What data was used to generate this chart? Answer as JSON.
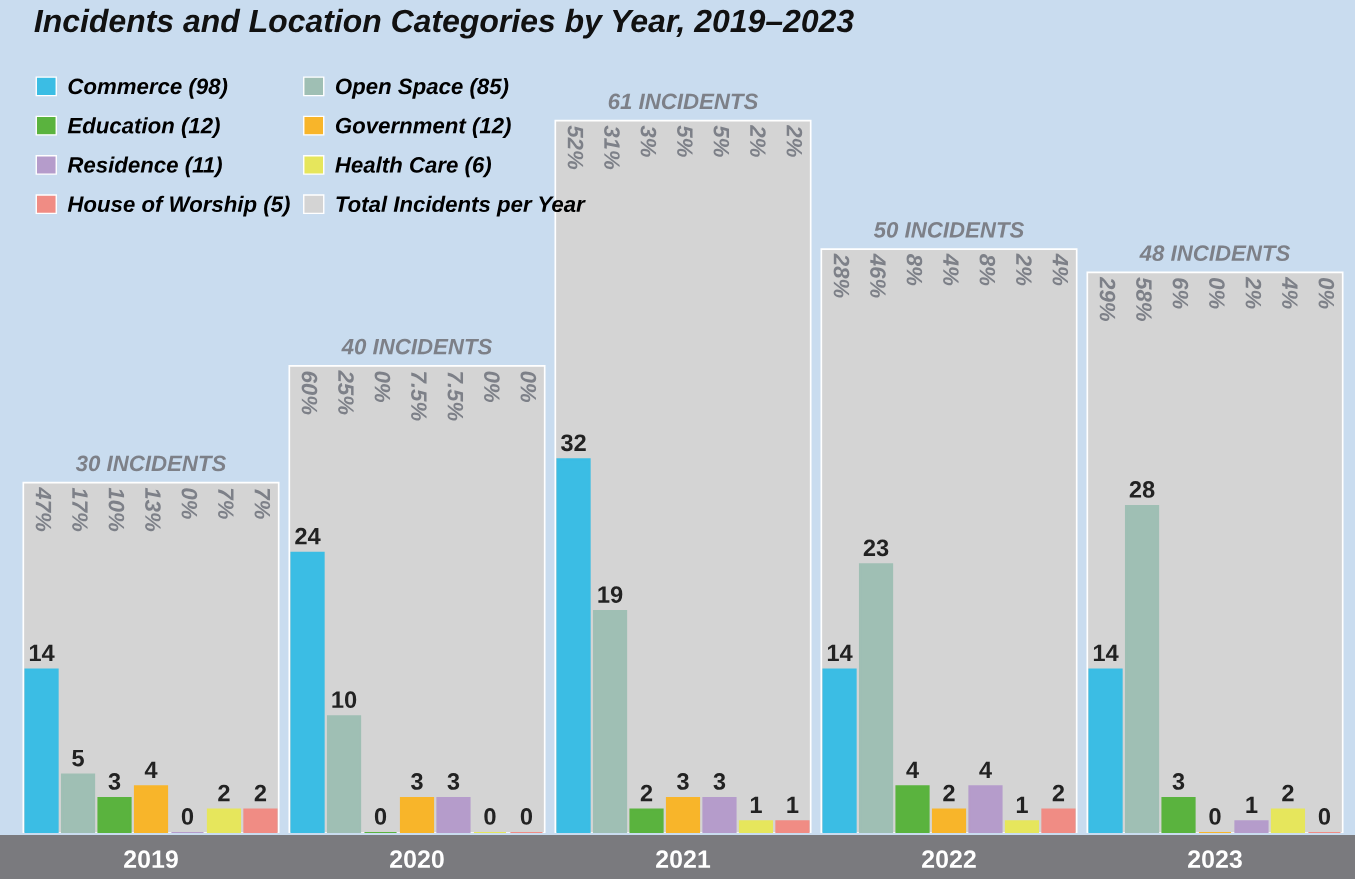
{
  "chart_data": {
    "type": "bar",
    "title": "Incidents and Location Categories by Year, 2019–2023",
    "categories": [
      "2019",
      "2020",
      "2021",
      "2022",
      "2023"
    ],
    "tick_labels": "x",
    "legend": "top left",
    "series": [
      {
        "name": "Total Incidents per Year",
        "color": "#d4d4d4",
        "values": [
          30,
          40,
          61,
          50,
          48
        ]
      },
      {
        "name": "Commerce (98)",
        "color": "#3bbde4",
        "values": [
          14,
          24,
          32,
          14,
          14
        ],
        "value_labels": [
          "14",
          "24",
          "32",
          "14",
          "14"
        ]
      },
      {
        "name": "Open Space (85)",
        "color": "#9fbfb4",
        "values": [
          5,
          10,
          19,
          23,
          28
        ],
        "value_labels": [
          "5",
          "10",
          "19",
          "23",
          "28"
        ]
      },
      {
        "name": "Education (12)",
        "color": "#5ab33e",
        "values": [
          3,
          0,
          2,
          4,
          3
        ],
        "value_labels": [
          "3",
          "0",
          "2",
          "4",
          "3"
        ]
      },
      {
        "name": "Government (12)",
        "color": "#f8b52a",
        "values": [
          4,
          3,
          3,
          2,
          0
        ],
        "value_labels": [
          "4",
          "3",
          "3",
          "2",
          "0"
        ]
      },
      {
        "name": "Residence (11)",
        "color": "#b59ccb",
        "values": [
          0,
          3,
          3,
          4,
          1
        ],
        "value_labels": [
          "0",
          "3",
          "3",
          "4",
          "1"
        ]
      },
      {
        "name": "Health Care (6)",
        "color": "#e6e65c",
        "values": [
          2,
          0,
          1,
          1,
          2
        ],
        "value_labels": [
          "2",
          "0",
          "1",
          "1",
          "2"
        ]
      },
      {
        "name": "House of Worship (5)",
        "color": "#f08c84",
        "values": [
          2,
          0,
          1,
          2,
          0
        ],
        "value_labels": [
          "2",
          "0",
          "1",
          "2",
          "0"
        ]
      }
    ],
    "annotations": [
      {
        "text": "30 INCIDENTS",
        "x": "2019",
        "y": 30
      },
      {
        "text": "40 INCIDENTS",
        "x": "2020",
        "y": 40
      },
      {
        "text": "61 INCIDENTS",
        "x": "2021",
        "y": 61
      },
      {
        "text": "50 INCIDENTS",
        "x": "2022",
        "y": 50
      },
      {
        "text": "48 INCIDENTS",
        "x": "2023",
        "y": 48
      },
      "47%",
      "17%",
      "10%",
      "13%",
      "0%",
      "7%",
      "7%",
      "60%",
      "25%",
      "0%",
      "7.5%",
      "7.5%",
      "0%",
      "0%",
      "52%",
      "31%",
      "3%",
      "5%",
      "5%",
      "2%",
      "2%",
      "28%",
      "46%",
      "8%",
      "4%",
      "8%",
      "2%",
      "4%",
      "29%",
      "58%",
      "6%",
      "0%",
      "2%",
      "4%",
      "0%"
    ]
  }
}
